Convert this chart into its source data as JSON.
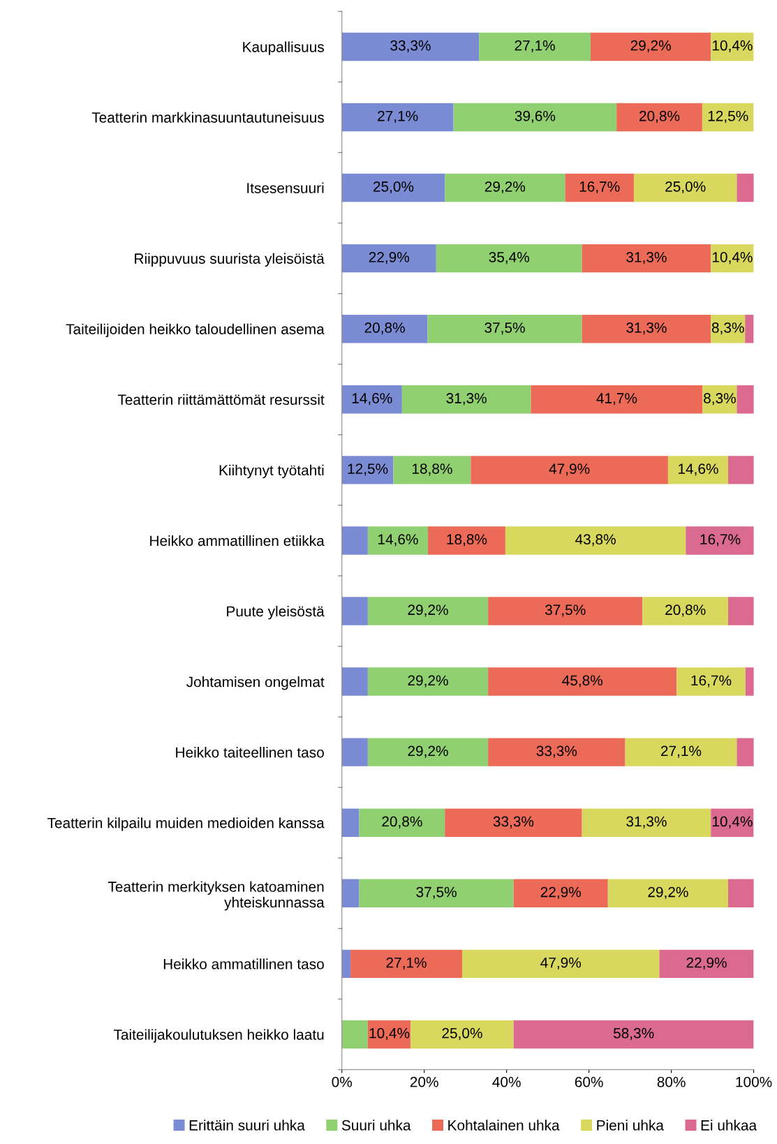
{
  "chart_data": {
    "type": "bar",
    "orientation": "horizontal",
    "stacked": true,
    "legend": "bottom",
    "grid": false,
    "categories": [
      "Kaupallisuus",
      "Teatterin markkinasuuntautuneisuus",
      "Itsesensuuri",
      "Riippuvuus suurista yleisöistä",
      "Taiteilijoiden heikko taloudellinen asema",
      "Teatterin riittämättömät resurssit",
      "Kiihtynyt työtahti",
      "Heikko ammatillinen etiikka",
      "Puute yleisöstä",
      "Johtamisen ongelmat",
      "Heikko taiteellinen taso",
      "Teatterin kilpailu muiden medioiden kanssa",
      "Teatterin merkityksen katoaminen\nyhteiskunnassa",
      "Heikko ammatillinen taso",
      "Taiteilijakoulutuksen heikko laatu"
    ],
    "xlim": [
      0,
      100
    ],
    "xticks": [
      {
        "value": 0,
        "label": "0%"
      },
      {
        "value": 20,
        "label": "20%"
      },
      {
        "value": 40,
        "label": "40%"
      },
      {
        "value": 60,
        "label": "60%"
      },
      {
        "value": 80,
        "label": "80%"
      },
      {
        "value": 100,
        "label": "100%"
      }
    ],
    "series": [
      {
        "name": "Erittäin suuri uhka",
        "color": "#7b8bd3",
        "values": [
          33.3,
          27.1,
          25.0,
          22.9,
          20.8,
          14.6,
          12.5,
          6.3,
          6.3,
          6.3,
          6.3,
          4.2,
          4.2,
          2.1,
          0
        ],
        "value_labels": [
          "33,3%",
          "27,1%",
          "25,0%",
          "22,9%",
          "20,8%",
          "14,6%",
          "12,5%",
          null,
          null,
          null,
          null,
          null,
          null,
          null,
          null
        ]
      },
      {
        "name": "Suuri uhka",
        "color": "#90d070",
        "values": [
          27.1,
          39.6,
          29.2,
          35.4,
          37.5,
          31.3,
          18.8,
          14.6,
          29.2,
          29.2,
          29.2,
          20.8,
          37.5,
          0,
          6.3
        ],
        "value_labels": [
          "27,1%",
          "39,6%",
          "29,2%",
          "35,4%",
          "37,5%",
          "31,3%",
          "18,8%",
          "14,6%",
          "29,2%",
          "29,2%",
          "29,2%",
          "20,8%",
          "37,5%",
          null,
          null
        ]
      },
      {
        "name": "Kohtalainen uhka",
        "color": "#ec6a58",
        "values": [
          29.2,
          20.8,
          16.7,
          31.3,
          31.3,
          41.7,
          47.9,
          18.8,
          37.5,
          45.8,
          33.3,
          33.3,
          22.9,
          27.1,
          10.4
        ],
        "value_labels": [
          "29,2%",
          "20,8%",
          "16,7%",
          "31,3%",
          "31,3%",
          "41,7%",
          "47,9%",
          "18,8%",
          "37,5%",
          "45,8%",
          "33,3%",
          "33,3%",
          "22,9%",
          "27,1%",
          "10,4%"
        ]
      },
      {
        "name": "Pieni uhka",
        "color": "#d9d85e",
        "values": [
          10.4,
          12.5,
          25.0,
          10.4,
          8.3,
          8.3,
          14.6,
          43.8,
          20.8,
          16.7,
          27.1,
          31.3,
          29.2,
          47.9,
          25.0
        ],
        "value_labels": [
          "10,4%",
          "12,5%",
          "25,0%",
          "10,4%",
          "8,3%",
          "8,3%",
          "14,6%",
          "43,8%",
          "20,8%",
          "16,7%",
          "27,1%",
          "31,3%",
          "29,2%",
          "47,9%",
          "25,0%"
        ]
      },
      {
        "name": "Ei uhkaa",
        "color": "#da6a90",
        "values": [
          0,
          0,
          4.2,
          0,
          2.1,
          4.2,
          6.3,
          16.7,
          6.3,
          2.1,
          4.2,
          10.4,
          6.3,
          22.9,
          58.3
        ],
        "value_labels": [
          null,
          null,
          null,
          null,
          null,
          null,
          null,
          "16,7%",
          null,
          null,
          null,
          "10,4%",
          null,
          "22,9%",
          "58,3%"
        ]
      }
    ]
  }
}
